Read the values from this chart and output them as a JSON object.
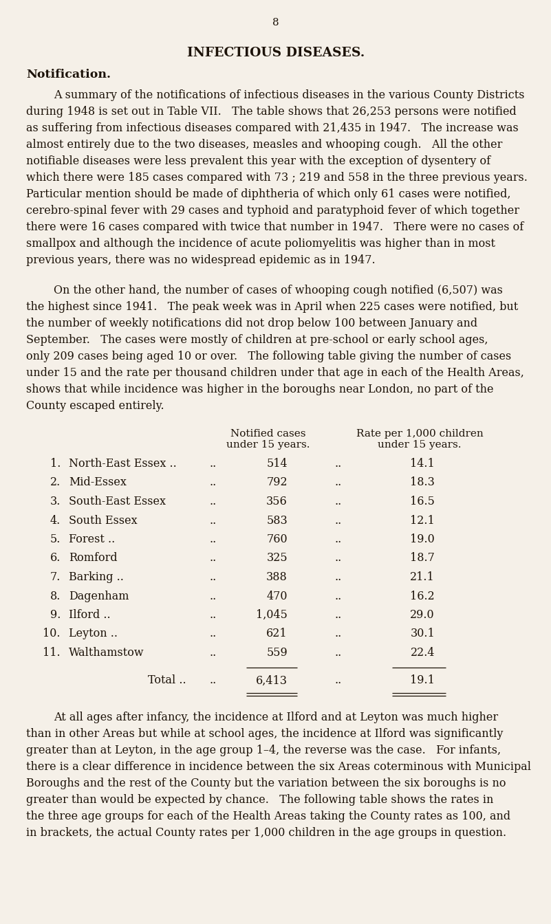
{
  "background_color": "#f5f0e8",
  "page_number": "8",
  "title": "INFECTIOUS DISEASES.",
  "section_heading": "Notification.",
  "para1_lines": [
    "A summary of the notifications of infectious diseases in the various County Districts",
    "during 1948 is set out in Table VII.   The table shows that 26,253 persons were notified",
    "as suffering from infectious diseases compared with 21,435 in 1947.   The increase was",
    "almost entirely due to the two diseases, measles and whooping cough.   All the other",
    "notifiable diseases were less prevalent this year with the exception of dysentery of",
    "which there were 185 cases compared with 73 ; 219 and 558 in the three previous years.",
    "Particular mention should be made of diphtheria of which only 61 cases were notified,",
    "cerebro-spinal fever with 29 cases and typhoid and paratyphoid fever of which together",
    "there were 16 cases compared with twice that number in 1947.   There were no cases of",
    "smallpox and although the incidence of acute poliomyelitis was higher than in most",
    "previous years, there was no widespread epidemic as in 1947."
  ],
  "para2_lines": [
    "On the other hand, the number of cases of whooping cough notified (6,507) was",
    "the highest since 1941.   The peak week was in April when 225 cases were notified, but",
    "the number of weekly notifications did not drop below 100 between January and",
    "September.   The cases were mostly of children at pre-school or early school ages,",
    "only 209 cases being aged 10 or over.   The following table giving the number of cases",
    "under 15 and the rate per thousand children under that age in each of the Health Areas,",
    "shows that while incidence was higher in the boroughs near London, no part of the",
    "County escaped entirely."
  ],
  "col_header1_line1": "Notified cases",
  "col_header1_line2": "under 15 years.",
  "col_header2_line1": "Rate per 1,000 children",
  "col_header2_line2": "under 15 years.",
  "table_rows": [
    {
      "num": "1.",
      "area": "North-East Essex ..",
      "dots1": "..",
      "cases": "514",
      "dots2": "..",
      "rate": "14.1"
    },
    {
      "num": "2.",
      "area": "Mid-Essex",
      "dots1": "..",
      "cases": "792",
      "dots2": "..",
      "rate": "18.3"
    },
    {
      "num": "3.",
      "area": "South-East Essex",
      "dots1": "..",
      "cases": "356",
      "dots2": "..",
      "rate": "16.5"
    },
    {
      "num": "4.",
      "area": "South Essex",
      "dots1": "..",
      "cases": "583",
      "dots2": "..",
      "rate": "12.1"
    },
    {
      "num": "5.",
      "area": "Forest ..",
      "dots1": "..",
      "cases": "760",
      "dots2": "..",
      "rate": "19.0"
    },
    {
      "num": "6.",
      "area": "Romford",
      "dots1": "..",
      "cases": "325",
      "dots2": "..",
      "rate": "18.7"
    },
    {
      "num": "7.",
      "area": "Barking ..",
      "dots1": "..",
      "cases": "388",
      "dots2": "..",
      "rate": "21.1"
    },
    {
      "num": "8.",
      "area": "Dagenham",
      "dots1": "..",
      "cases": "470",
      "dots2": "..",
      "rate": "16.2"
    },
    {
      "num": "9.",
      "area": "Ilford ..",
      "dots1": "..",
      "cases": "1,045",
      "dots2": "..",
      "rate": "29.0"
    },
    {
      "num": "10.",
      "area": "Leyton ..",
      "dots1": "..",
      "cases": "621",
      "dots2": "..",
      "rate": "30.1"
    },
    {
      "num": "11.",
      "area": "Walthamstow",
      "dots1": "..",
      "cases": "559",
      "dots2": "..",
      "rate": "22.4"
    }
  ],
  "total_label": "Total ..",
  "total_dots": "..",
  "total_cases": "6,413",
  "total_dots2": "..",
  "total_rate": "19.1",
  "para3_lines": [
    "At all ages after infancy, the incidence at Ilford and at Leyton was much higher",
    "than in other Areas but while at school ages, the incidence at Ilford was significantly",
    "greater than at Leyton, in the age group 1–4, the reverse was the case.   For infants,",
    "there is a clear difference in incidence between the six Areas coterminous with Municipal",
    "Boroughs and the rest of the County but the variation between the six boroughs is no",
    "greater than would be expected by chance.   The following table shows the rates in",
    "the three age groups for each of the Health Areas taking the County rates as 100, and",
    "in brackets, the actual County rates per 1,000 children in the age groups in question."
  ]
}
